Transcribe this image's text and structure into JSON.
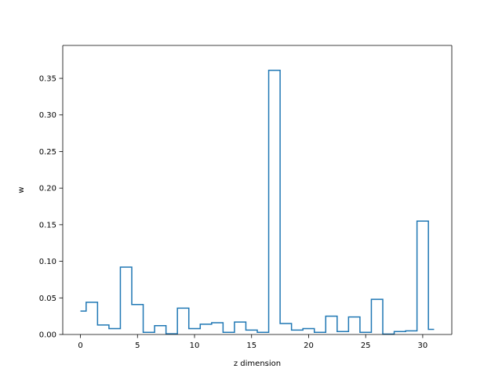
{
  "chart_data": {
    "type": "line",
    "step": "mid",
    "xlabel": "z dimension",
    "ylabel": "w",
    "xlim": [
      -1.55,
      32.55
    ],
    "ylim": [
      0,
      0.395
    ],
    "xticks": [
      0,
      5,
      10,
      15,
      20,
      25,
      30
    ],
    "xtick_labels": [
      "0",
      "5",
      "10",
      "15",
      "20",
      "25",
      "30"
    ],
    "yticks": [
      0.0,
      0.05,
      0.1,
      0.15,
      0.2,
      0.25,
      0.3,
      0.35
    ],
    "ytick_labels": [
      "0.00",
      "0.05",
      "0.10",
      "0.15",
      "0.20",
      "0.25",
      "0.30",
      "0.35"
    ],
    "grid": false,
    "series": [
      {
        "color": "#1f77b4",
        "x": [
          0,
          1,
          2,
          3,
          4,
          5,
          6,
          7,
          8,
          9,
          10,
          11,
          12,
          13,
          14,
          15,
          16,
          17,
          18,
          19,
          20,
          21,
          22,
          23,
          24,
          25,
          26,
          27,
          28,
          29,
          30,
          31
        ],
        "y": [
          0.032,
          0.044,
          0.013,
          0.008,
          0.092,
          0.041,
          0.003,
          0.012,
          0.001,
          0.036,
          0.008,
          0.014,
          0.016,
          0.003,
          0.017,
          0.006,
          0.003,
          0.361,
          0.015,
          0.006,
          0.008,
          0.003,
          0.025,
          0.004,
          0.024,
          0.003,
          0.048,
          0.0005,
          0.004,
          0.005,
          0.155,
          0.007
        ]
      }
    ]
  }
}
